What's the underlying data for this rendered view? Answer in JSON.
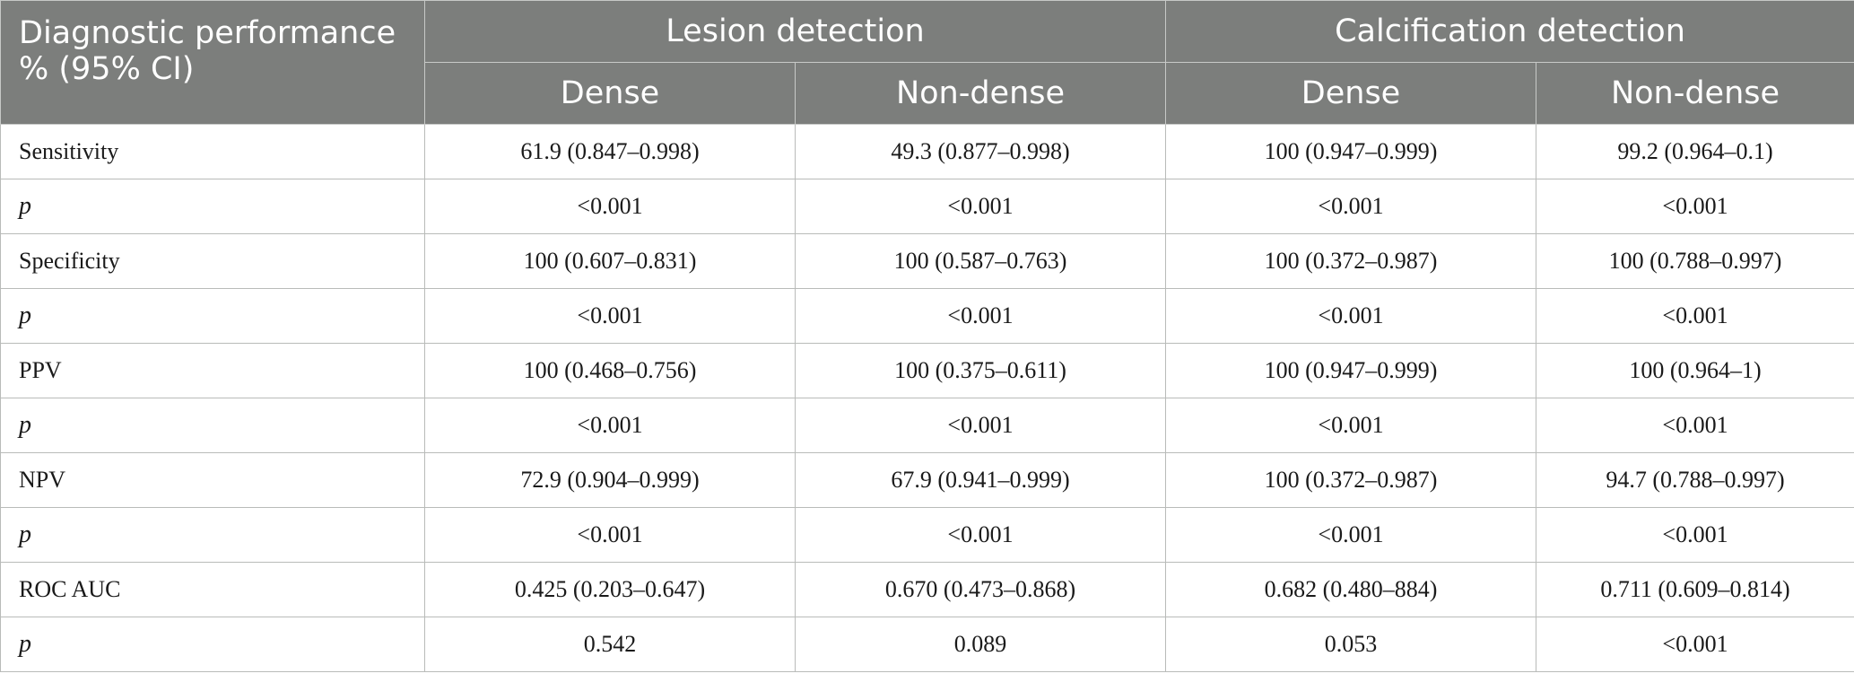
{
  "table": {
    "header": {
      "corner_label": "Diagnostic performance % (95% CI)",
      "groups": [
        "Lesion detection",
        "Calcification detection"
      ],
      "subcolumns": [
        "Dense",
        "Non-dense",
        "Dense",
        "Non-dense"
      ]
    },
    "rows": [
      {
        "label": "Sensitivity",
        "cells": [
          "61.9 (0.847–0.998)",
          "49.3 (0.877–0.998)",
          "100 (0.947–0.999)",
          "99.2 (0.964–0.1)"
        ]
      },
      {
        "label": "p",
        "cells": [
          "<0.001",
          "<0.001",
          "<0.001",
          "<0.001"
        ]
      },
      {
        "label": "Specificity",
        "cells": [
          "100 (0.607–0.831)",
          "100 (0.587–0.763)",
          "100 (0.372–0.987)",
          "100 (0.788–0.997)"
        ]
      },
      {
        "label": "p",
        "cells": [
          "<0.001",
          "<0.001",
          "<0.001",
          "<0.001"
        ]
      },
      {
        "label": "PPV",
        "cells": [
          "100 (0.468–0.756)",
          "100 (0.375–0.611)",
          "100 (0.947–0.999)",
          "100 (0.964–1)"
        ]
      },
      {
        "label": "p",
        "cells": [
          "<0.001",
          "<0.001",
          "<0.001",
          "<0.001"
        ]
      },
      {
        "label": "NPV",
        "cells": [
          "72.9 (0.904–0.999)",
          "67.9 (0.941–0.999)",
          "100 (0.372–0.987)",
          "94.7 (0.788–0.997)"
        ]
      },
      {
        "label": "p",
        "cells": [
          "<0.001",
          "<0.001",
          "<0.001",
          "<0.001"
        ]
      },
      {
        "label": "ROC AUC",
        "cells": [
          "0.425 (0.203–0.647)",
          "0.670 (0.473–0.868)",
          "0.682 (0.480–884)",
          "0.711 (0.609–0.814)"
        ]
      },
      {
        "label": "p",
        "cells": [
          "0.542",
          "0.089",
          "0.053",
          "<0.001"
        ]
      }
    ]
  }
}
